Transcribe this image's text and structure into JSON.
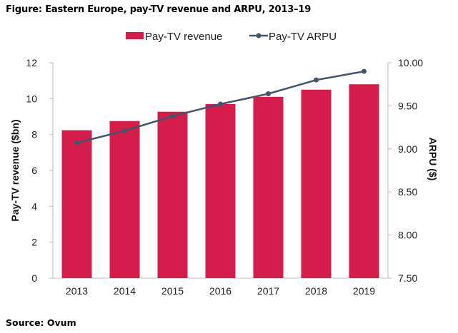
{
  "figure": {
    "title": "Figure: Eastern Europe, pay-TV revenue and ARPU, 2013–19",
    "source": "Source: Ovum"
  },
  "colors": {
    "bar": "#d41d4a",
    "line": "#44546a",
    "axis": "#bfbfbf"
  },
  "chart_data": {
    "type": "bar",
    "title": "Figure: Eastern Europe, pay-TV revenue and ARPU, 2013–19",
    "categories": [
      "2013",
      "2014",
      "2015",
      "2016",
      "2017",
      "2018",
      "2019"
    ],
    "series": [
      {
        "name": "Pay-TV revenue",
        "type": "bar",
        "axis": "left",
        "values": [
          8.24,
          8.75,
          9.27,
          9.7,
          10.1,
          10.5,
          10.8
        ]
      },
      {
        "name": "Pay-TV ARPU",
        "type": "line",
        "axis": "right",
        "values": [
          9.07,
          9.21,
          9.38,
          9.52,
          9.64,
          9.8,
          9.9
        ]
      }
    ],
    "xlabel": "",
    "ylabel": "Pay-TV revenue ($bn)",
    "y2label": "ARPU ($)",
    "ylim": [
      0,
      12
    ],
    "yticks": [
      "0",
      "2",
      "4",
      "6",
      "8",
      "10",
      "12"
    ],
    "y2lim": [
      7.5,
      10.0
    ],
    "y2ticks": [
      "7.50",
      "8.00",
      "8.50",
      "9.00",
      "9.50",
      "10.00"
    ],
    "grid": false,
    "legend": "top-center"
  }
}
